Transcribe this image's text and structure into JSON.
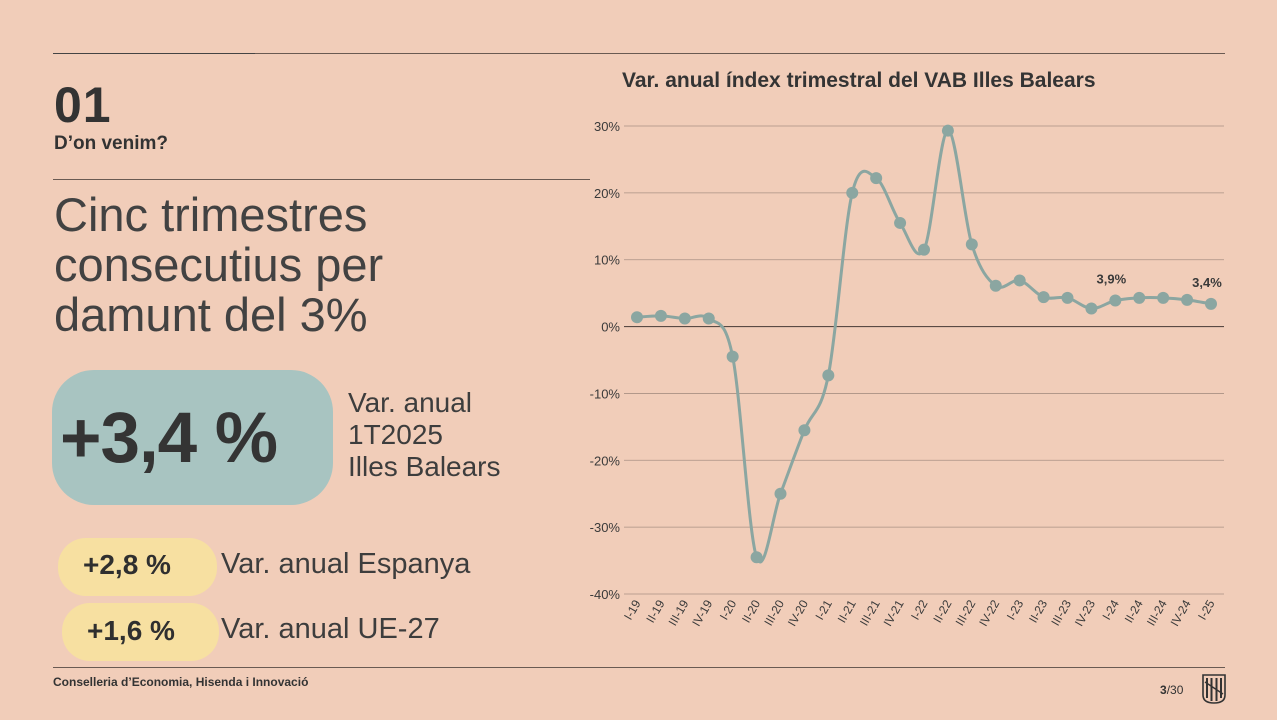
{
  "section": {
    "number": "01",
    "subtitle": "D’on venim?"
  },
  "headline": {
    "line1": "Cinc trimestres",
    "line2": "consecutius per",
    "line3": "damunt del 3%"
  },
  "highlight": {
    "value": "+3,4 %",
    "label_line1": "Var. anual",
    "label_line2": "1T2025",
    "label_line3": "Illes Balears"
  },
  "comparisons": [
    {
      "value": "+2,8 %",
      "label": "Var. anual Espanya"
    },
    {
      "value": "+1,6 %",
      "label": "Var. anual UE-27"
    }
  ],
  "footer": {
    "text": "Conselleria d’Economia, Hisenda i Innovació",
    "page": "3",
    "total": "/30"
  },
  "colors": {
    "background": "#f1cdb9",
    "line": "#8ba6a1",
    "main_pill": "#a8c4c1",
    "small_pill": "#f7e0a1"
  },
  "chart_data": {
    "type": "line",
    "title": "Var. anual índex trimestral del VAB Illes Balears",
    "categories": [
      "I-19",
      "II-19",
      "III-19",
      "IV-19",
      "I-20",
      "II-20",
      "III-20",
      "IV-20",
      "I-21",
      "II-21",
      "III-21",
      "IV-21",
      "I-22",
      "II-22",
      "III-22",
      "IV-22",
      "I-23",
      "II-23",
      "III-23",
      "IV-23",
      "I-24",
      "II-24",
      "III-24",
      "IV-24",
      "I-25"
    ],
    "values": [
      1.4,
      1.6,
      1.2,
      1.2,
      -4.5,
      -34.5,
      -25.0,
      -15.5,
      -7.3,
      20.0,
      22.2,
      15.5,
      11.5,
      29.3,
      12.3,
      6.1,
      6.9,
      4.4,
      4.3,
      2.7,
      3.9,
      4.3,
      4.3,
      4.0,
      3.4
    ],
    "data_labels": [
      {
        "index": 20,
        "text": "3,9%"
      },
      {
        "index": 24,
        "text": "3,4%"
      }
    ],
    "ylim": [
      -40,
      30
    ],
    "yticks": [
      {
        "value": 30,
        "label": "30%"
      },
      {
        "value": 20,
        "label": "20%"
      },
      {
        "value": 10,
        "label": "10%"
      },
      {
        "value": 0,
        "label": "0%"
      },
      {
        "value": -10,
        "label": "-10%"
      },
      {
        "value": -20,
        "label": "-20%"
      },
      {
        "value": -30,
        "label": "-30%"
      },
      {
        "value": -40,
        "label": "-40%"
      }
    ],
    "grid": true,
    "legend": "none"
  }
}
